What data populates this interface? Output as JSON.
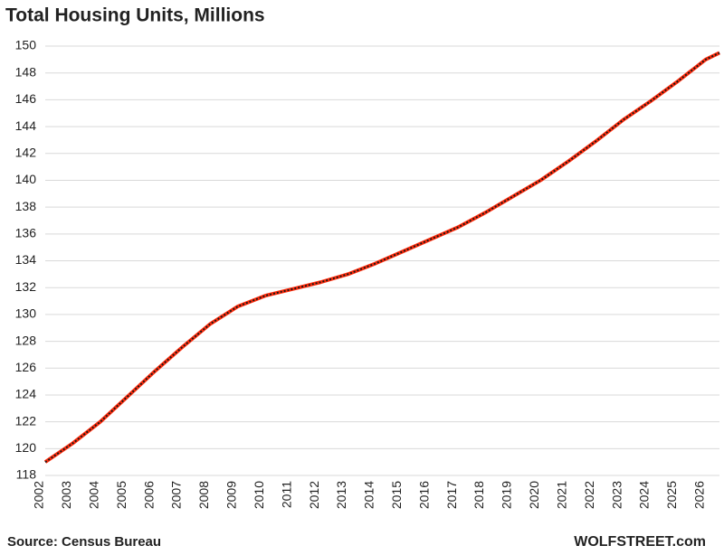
{
  "chart_data": {
    "type": "line",
    "title": "Total Housing Units, Millions",
    "source": "Source: Census Bureau",
    "brand": "WOLFSTREET.com",
    "x": [
      2002,
      2003,
      2004,
      2005,
      2006,
      2007,
      2008,
      2009,
      2010,
      2011,
      2012,
      2013,
      2014,
      2015,
      2016,
      2017,
      2018,
      2019,
      2020,
      2021,
      2022,
      2023,
      2024,
      2025,
      2026,
      2026.5
    ],
    "series": [
      {
        "name": "Total Housing Units",
        "color": "#ff2a0a",
        "dash_color": "#1a1a1a",
        "values": [
          119.0,
          120.4,
          122.0,
          123.9,
          125.8,
          127.6,
          129.3,
          130.6,
          131.4,
          131.9,
          132.4,
          133.0,
          133.8,
          134.7,
          135.6,
          136.5,
          137.6,
          138.8,
          140.0,
          141.4,
          142.9,
          144.5,
          145.9,
          147.4,
          149.0,
          149.5
        ]
      }
    ],
    "xlim": [
      2002,
      2026.5
    ],
    "xticks": [
      2002,
      2003,
      2004,
      2005,
      2006,
      2007,
      2008,
      2009,
      2010,
      2011,
      2012,
      2013,
      2014,
      2015,
      2016,
      2017,
      2018,
      2019,
      2020,
      2021,
      2022,
      2023,
      2024,
      2025,
      2026
    ],
    "ylim": [
      118,
      150
    ],
    "yticks": [
      118,
      120,
      122,
      124,
      126,
      128,
      130,
      132,
      134,
      136,
      138,
      140,
      142,
      144,
      146,
      148,
      150
    ],
    "grid": true
  }
}
